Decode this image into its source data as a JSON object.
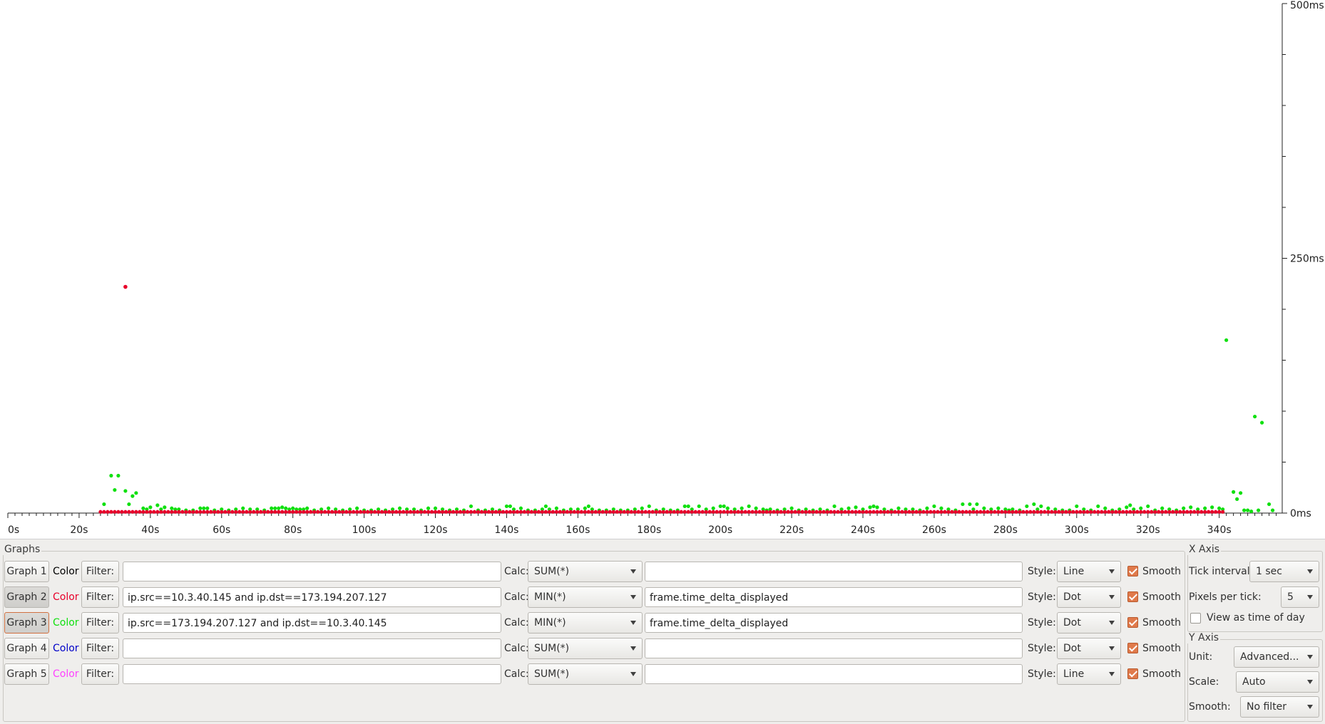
{
  "chart_data": {
    "type": "scatter",
    "x_ticks": [
      "0s",
      "20s",
      "40s",
      "60s",
      "80s",
      "100s",
      "120s",
      "140s",
      "160s",
      "180s",
      "200s",
      "220s",
      "240s",
      "260s",
      "280s",
      "300s",
      "320s",
      "340s"
    ],
    "y_ticks": [
      "0ms",
      "250ms",
      "500ms"
    ],
    "xlim": [
      0,
      358
    ],
    "ylim": [
      0,
      500
    ],
    "series": [
      {
        "color": "#e8002a",
        "baseline_range": [
          26,
          341
        ],
        "baseline_value": 0.5,
        "outliers": [
          [
            33,
            222
          ]
        ]
      },
      {
        "color": "#10e010",
        "points": [
          [
            27,
            8
          ],
          [
            29,
            36
          ],
          [
            30,
            22
          ],
          [
            31,
            36
          ],
          [
            33,
            21
          ],
          [
            34,
            8
          ],
          [
            35,
            16
          ],
          [
            36,
            19
          ],
          [
            38,
            4
          ],
          [
            39,
            3
          ],
          [
            40,
            5
          ],
          [
            42,
            7
          ],
          [
            43,
            3
          ],
          [
            44,
            5
          ],
          [
            46,
            4
          ],
          [
            47,
            3
          ],
          [
            48,
            3
          ],
          [
            50,
            2
          ],
          [
            52,
            2
          ],
          [
            54,
            4
          ],
          [
            55,
            4
          ],
          [
            56,
            4
          ],
          [
            58,
            2
          ],
          [
            60,
            3
          ],
          [
            62,
            2
          ],
          [
            64,
            3
          ],
          [
            66,
            4
          ],
          [
            68,
            3
          ],
          [
            70,
            3
          ],
          [
            72,
            2
          ],
          [
            74,
            4
          ],
          [
            75,
            4
          ],
          [
            76,
            4
          ],
          [
            77,
            5
          ],
          [
            78,
            4
          ],
          [
            79,
            3
          ],
          [
            80,
            4
          ],
          [
            81,
            3
          ],
          [
            82,
            3
          ],
          [
            83,
            3
          ],
          [
            84,
            4
          ],
          [
            86,
            2
          ],
          [
            88,
            3
          ],
          [
            90,
            4
          ],
          [
            92,
            3
          ],
          [
            94,
            2
          ],
          [
            96,
            3
          ],
          [
            98,
            4
          ],
          [
            100,
            2
          ],
          [
            102,
            2
          ],
          [
            104,
            3
          ],
          [
            106,
            2
          ],
          [
            108,
            3
          ],
          [
            110,
            4
          ],
          [
            112,
            3
          ],
          [
            114,
            3
          ],
          [
            116,
            2
          ],
          [
            118,
            4
          ],
          [
            120,
            4
          ],
          [
            122,
            3
          ],
          [
            124,
            2
          ],
          [
            126,
            3
          ],
          [
            128,
            2
          ],
          [
            130,
            6
          ],
          [
            132,
            2
          ],
          [
            134,
            2
          ],
          [
            136,
            3
          ],
          [
            138,
            2
          ],
          [
            140,
            6
          ],
          [
            141,
            6
          ],
          [
            142,
            3
          ],
          [
            144,
            4
          ],
          [
            146,
            2
          ],
          [
            148,
            2
          ],
          [
            150,
            3
          ],
          [
            151,
            6
          ],
          [
            152,
            3
          ],
          [
            154,
            4
          ],
          [
            156,
            2
          ],
          [
            158,
            3
          ],
          [
            160,
            3
          ],
          [
            162,
            4
          ],
          [
            163,
            6
          ],
          [
            164,
            3
          ],
          [
            166,
            2
          ],
          [
            168,
            2
          ],
          [
            170,
            3
          ],
          [
            172,
            2
          ],
          [
            174,
            2
          ],
          [
            176,
            3
          ],
          [
            178,
            4
          ],
          [
            180,
            6
          ],
          [
            182,
            2
          ],
          [
            184,
            3
          ],
          [
            186,
            2
          ],
          [
            188,
            2
          ],
          [
            190,
            6
          ],
          [
            191,
            6
          ],
          [
            192,
            3
          ],
          [
            194,
            6
          ],
          [
            196,
            3
          ],
          [
            198,
            4
          ],
          [
            200,
            6
          ],
          [
            201,
            6
          ],
          [
            202,
            4
          ],
          [
            204,
            3
          ],
          [
            206,
            4
          ],
          [
            208,
            6
          ],
          [
            210,
            4
          ],
          [
            212,
            3
          ],
          [
            213,
            2
          ],
          [
            214,
            3
          ],
          [
            216,
            2
          ],
          [
            218,
            3
          ],
          [
            220,
            4
          ],
          [
            222,
            2
          ],
          [
            224,
            3
          ],
          [
            226,
            2
          ],
          [
            228,
            3
          ],
          [
            230,
            2
          ],
          [
            232,
            6
          ],
          [
            234,
            3
          ],
          [
            236,
            4
          ],
          [
            238,
            5
          ],
          [
            240,
            3
          ],
          [
            242,
            5
          ],
          [
            243,
            6
          ],
          [
            244,
            5
          ],
          [
            246,
            3
          ],
          [
            248,
            2
          ],
          [
            250,
            4
          ],
          [
            252,
            3
          ],
          [
            254,
            3
          ],
          [
            256,
            2
          ],
          [
            258,
            4
          ],
          [
            260,
            6
          ],
          [
            262,
            4
          ],
          [
            264,
            3
          ],
          [
            266,
            2
          ],
          [
            268,
            8
          ],
          [
            270,
            8
          ],
          [
            271,
            3
          ],
          [
            272,
            8
          ],
          [
            274,
            4
          ],
          [
            276,
            3
          ],
          [
            278,
            4
          ],
          [
            280,
            3
          ],
          [
            281,
            2
          ],
          [
            282,
            3
          ],
          [
            284,
            2
          ],
          [
            286,
            6
          ],
          [
            288,
            8
          ],
          [
            289,
            3
          ],
          [
            290,
            6
          ],
          [
            292,
            4
          ],
          [
            294,
            3
          ],
          [
            296,
            2
          ],
          [
            298,
            2
          ],
          [
            300,
            6
          ],
          [
            302,
            3
          ],
          [
            304,
            2
          ],
          [
            306,
            6
          ],
          [
            308,
            4
          ],
          [
            310,
            2
          ],
          [
            312,
            3
          ],
          [
            314,
            5
          ],
          [
            315,
            7
          ],
          [
            316,
            3
          ],
          [
            318,
            4
          ],
          [
            320,
            6
          ],
          [
            322,
            2
          ],
          [
            324,
            4
          ],
          [
            326,
            3
          ],
          [
            328,
            2
          ],
          [
            330,
            4
          ],
          [
            332,
            5
          ],
          [
            334,
            3
          ],
          [
            336,
            4
          ],
          [
            338,
            5
          ],
          [
            340,
            4
          ],
          [
            341,
            3
          ],
          [
            342,
            169
          ],
          [
            344,
            20
          ],
          [
            345,
            13
          ],
          [
            346,
            19
          ],
          [
            347,
            2
          ],
          [
            348,
            2
          ],
          [
            349,
            1
          ],
          [
            350,
            94
          ],
          [
            351,
            2
          ],
          [
            352,
            88
          ],
          [
            354,
            8
          ],
          [
            355,
            2
          ]
        ]
      }
    ]
  },
  "graphs_panel": {
    "title": "Graphs",
    "filter_label": "Filter:",
    "calc_label": "Calc:",
    "style_label": "Style:",
    "color_label": "Color",
    "smooth_label": "Smooth",
    "rows": [
      {
        "name": "Graph 1",
        "color": "#000000",
        "filter": "",
        "calc": "SUM(*)",
        "field": "",
        "style": "Line",
        "smooth": true,
        "pressed": false
      },
      {
        "name": "Graph 2",
        "color": "#e8002a",
        "filter": "ip.src==10.3.40.145 and ip.dst==173.194.207.127",
        "calc": "MIN(*)",
        "field": "frame.time_delta_displayed",
        "style": "Dot",
        "smooth": true,
        "pressed": true
      },
      {
        "name": "Graph 3",
        "color": "#10e010",
        "filter": "ip.src==173.194.207.127 and ip.dst==10.3.40.145",
        "calc": "MIN(*)",
        "field": "frame.time_delta_displayed",
        "style": "Dot",
        "smooth": true,
        "pressed": true
      },
      {
        "name": "Graph 4",
        "color": "#0000c8",
        "filter": "",
        "calc": "SUM(*)",
        "field": "",
        "style": "Dot",
        "smooth": true,
        "pressed": false
      },
      {
        "name": "Graph 5",
        "color": "#ff40ff",
        "filter": "",
        "calc": "SUM(*)",
        "field": "",
        "style": "Line",
        "smooth": true,
        "pressed": false
      }
    ]
  },
  "x_axis_panel": {
    "title": "X Axis",
    "tick_interval_label": "Tick interval:",
    "tick_interval_value": "1 sec",
    "pixels_per_tick_label": "Pixels per tick:",
    "pixels_per_tick_value": "5",
    "time_of_day_label": "View as time of day",
    "time_of_day_checked": false
  },
  "y_axis_panel": {
    "title": "Y Axis",
    "unit_label": "Unit:",
    "unit_value": "Advanced...",
    "scale_label": "Scale:",
    "scale_value": "Auto",
    "smooth_label": "Smooth:",
    "smooth_value": "No filter"
  }
}
